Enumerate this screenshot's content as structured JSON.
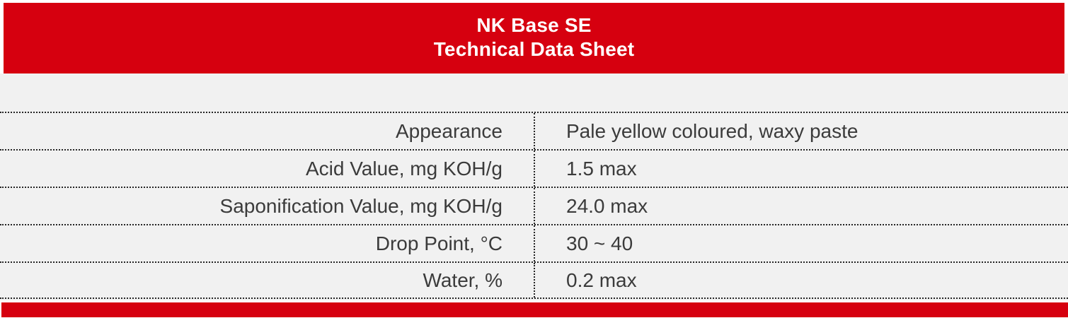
{
  "header": {
    "title_line1": "NK Base SE",
    "title_line2": "Technical Data Sheet"
  },
  "table": {
    "rows": [
      {
        "label": "Appearance",
        "value": "Pale yellow coloured, waxy paste"
      },
      {
        "label": "Acid Value, mg KOH/g",
        "value": "1.5 max"
      },
      {
        "label": "Saponification Value, mg KOH/g",
        "value": "24.0 max"
      },
      {
        "label": "Drop Point, °C",
        "value": "30 ~ 40"
      },
      {
        "label": "Water, %",
        "value": "0.2 max"
      }
    ]
  },
  "colors": {
    "accent_red": "#d6000f",
    "body_bg": "#f1f1f1",
    "text_color": "#3b3b3b",
    "line_color": "#262626"
  }
}
